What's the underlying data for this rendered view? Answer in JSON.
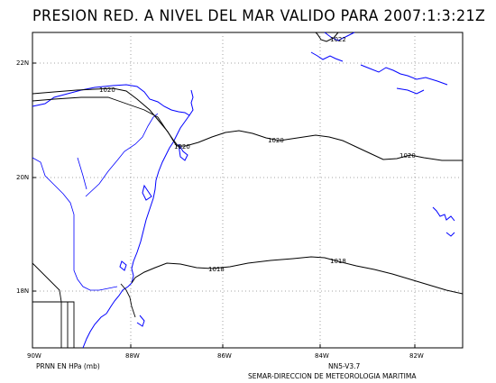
{
  "title": "PRESION RED. A NIVEL DEL MAR VALIDO PARA 2007:1:3:21Z",
  "units_label": "PRNN EN HPa (mb)",
  "model_label": "NN5-V3.7",
  "agency_label": "SEMAR-DIRECCION DE METEOROLOGIA MARITIMA",
  "lat_ticks": [
    "22N",
    "20N",
    "18N"
  ],
  "lon_ticks": [
    "90W",
    "88W",
    "86W",
    "84W",
    "82W"
  ],
  "contour_labels": [
    "1022",
    "1020",
    "1020",
    "1020",
    "1020",
    "1018",
    "1018"
  ],
  "colors": {
    "coast": "#0000ff",
    "border": "#000000",
    "contour": "#000000",
    "grid": "#888888"
  }
}
